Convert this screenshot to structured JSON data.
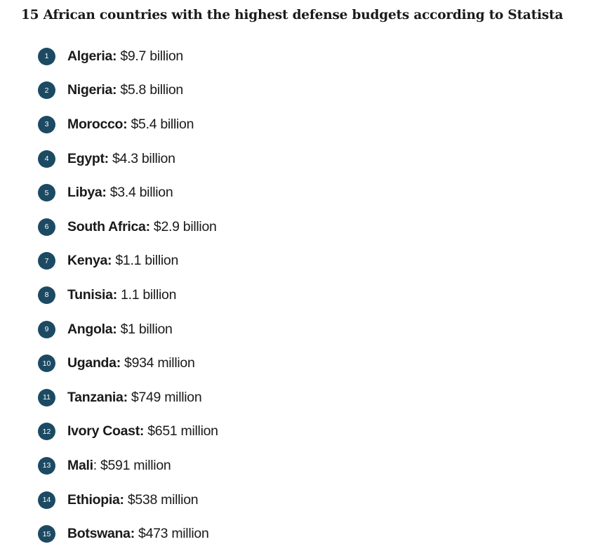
{
  "title": "15 African countries with the highest defense budgets according to Statista",
  "items": [
    {
      "rank": "1",
      "country": "Algeria:",
      "value": "$9.7 billion"
    },
    {
      "rank": "2",
      "country": "Nigeria:",
      "value": "$5.8 billion"
    },
    {
      "rank": "3",
      "country": "Morocco:",
      "value": "$5.4 billion"
    },
    {
      "rank": "4",
      "country": "Egypt:",
      "value": "$4.3 billion"
    },
    {
      "rank": "5",
      "country": "Libya:",
      "value": "$3.4 billion"
    },
    {
      "rank": "6",
      "country": "South Africa:",
      "value": "$2.9 billion"
    },
    {
      "rank": "7",
      "country": "Kenya:",
      "value": "$1.1 billion"
    },
    {
      "rank": "8",
      "country": "Tunisia:",
      "value": "1.1 billion"
    },
    {
      "rank": "9",
      "country": "Angola:",
      "value": "$1 billion"
    },
    {
      "rank": "10",
      "country": "Uganda:",
      "value": "$934 million"
    },
    {
      "rank": "11",
      "country": "Tanzania:",
      "value": "$749 million"
    },
    {
      "rank": "12",
      "country": "Ivory Coast:",
      "value": "$651 million"
    },
    {
      "rank": "13",
      "country": "Mali",
      "value": ": $591 million"
    },
    {
      "rank": "14",
      "country": "Ethiopia:",
      "value": "$538 million"
    },
    {
      "rank": "15",
      "country": "Botswana:",
      "value": "$473 million"
    }
  ],
  "colors": {
    "badge": "#1c4a63",
    "text": "#1a1a1a",
    "background": "#ffffff"
  }
}
